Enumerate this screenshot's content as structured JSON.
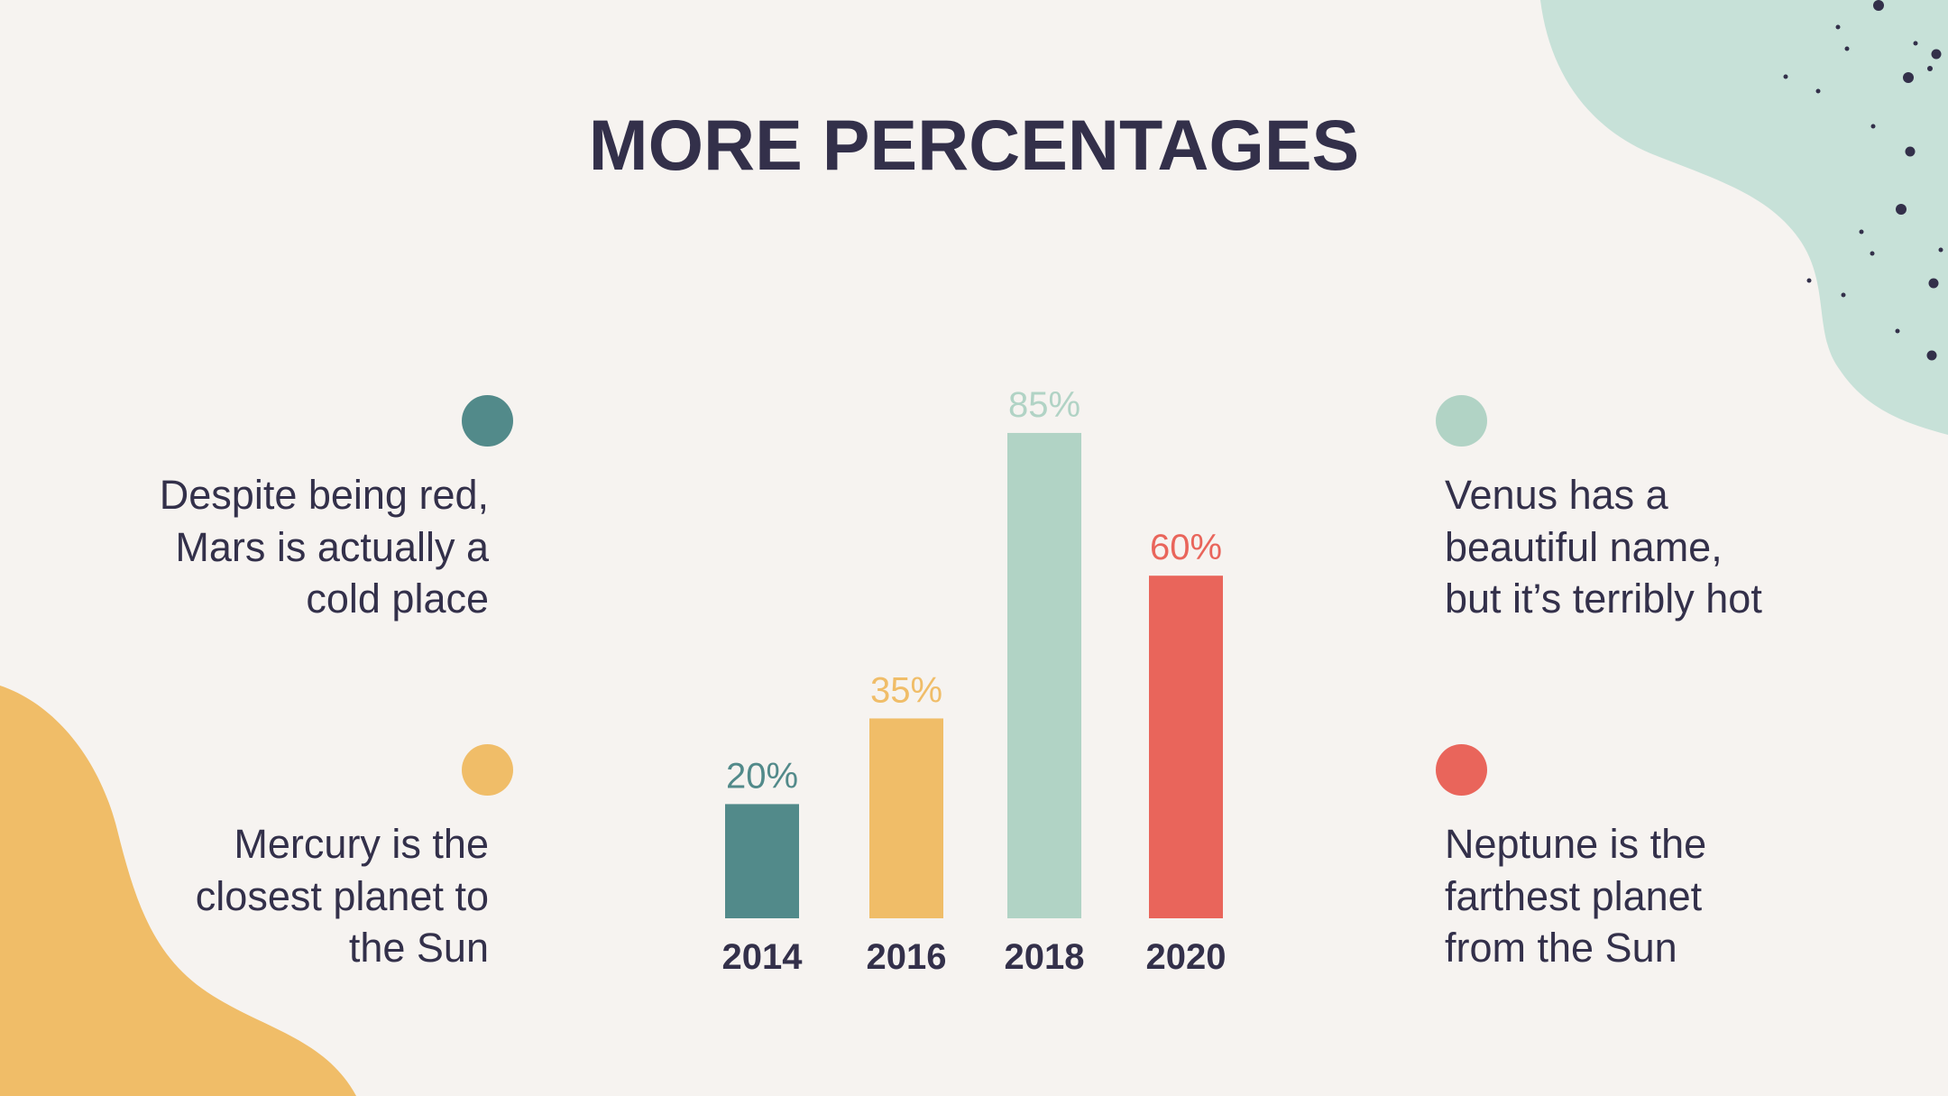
{
  "slide": {
    "title": "MORE PERCENTAGES"
  },
  "notes": [
    {
      "id": "mars",
      "text": "Despite being red, Mars is actually a cold place",
      "color": "#528a8a"
    },
    {
      "id": "mercury",
      "text": "Mercury is the closest planet to the Sun",
      "color": "#f0bd68"
    },
    {
      "id": "venus",
      "text": "Venus has a beautiful name, but it’s terribly hot",
      "color": "#b1d3c5"
    },
    {
      "id": "neptune",
      "text": "Neptune is the farthest planet from the Sun",
      "color": "#e9655b"
    }
  ],
  "colors": {
    "background": "#f6f3f0",
    "text": "#33304a",
    "teal": "#528a8a",
    "yellow": "#f0bd68",
    "mint": "#b1d3c5",
    "red": "#e9655b"
  },
  "chart_data": {
    "type": "bar",
    "categories": [
      "2014",
      "2016",
      "2018",
      "2020"
    ],
    "values": [
      20,
      35,
      85,
      60
    ],
    "data_labels": [
      "20%",
      "35%",
      "85%",
      "60%"
    ],
    "colors": [
      "#528a8a",
      "#f0bd68",
      "#b1d3c5",
      "#e9655b"
    ],
    "title": "",
    "xlabel": "",
    "ylabel": "",
    "ylim": [
      0,
      100
    ],
    "grid": false,
    "legend": "none"
  }
}
